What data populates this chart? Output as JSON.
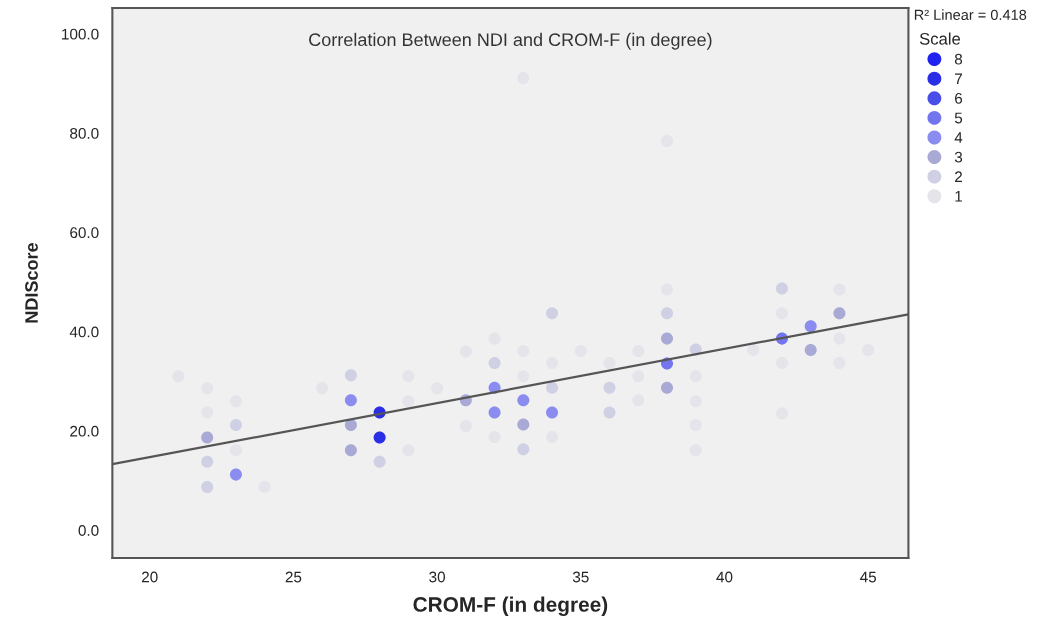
{
  "chart_data": {
    "type": "scatter",
    "title": "Correlation Between NDI and CROM-F (in degree)",
    "xlabel": "CROM-F (in degree)",
    "ylabel": "NDIScore",
    "legend_title": "Scale",
    "annotations": [
      "R² Linear = 0.418"
    ],
    "xlim": [
      18.7,
      46.4
    ],
    "ylim": [
      -5.6,
      105.2
    ],
    "xticks": [
      20,
      25,
      30,
      35,
      40,
      45
    ],
    "yticks": [
      {
        "value": 0,
        "label": "0.0"
      },
      {
        "value": 20,
        "label": "20.0"
      },
      {
        "value": 40,
        "label": "40.0"
      },
      {
        "value": 60,
        "label": "60.0"
      },
      {
        "value": 80,
        "label": "80.0"
      },
      {
        "value": 100,
        "label": "100.0"
      }
    ],
    "marker": "circle",
    "legend": "top right",
    "grid": false,
    "series": [
      {
        "name": "8",
        "color": "#1f22f0"
      },
      {
        "name": "7",
        "color": "#2a2ee6",
        "x": [
          28,
          28
        ],
        "values": [
          23.7,
          18.7
        ]
      },
      {
        "name": "6",
        "color": "#4a4ee8"
      },
      {
        "name": "5",
        "color": "#7375ee",
        "x": [
          38,
          42
        ],
        "values": [
          33.6,
          38.6
        ]
      },
      {
        "name": "4",
        "color": "#8a8cf0",
        "x": [
          23,
          27,
          32,
          32,
          33,
          34,
          43
        ],
        "values": [
          11.2,
          26.2,
          28.7,
          23.7,
          26.2,
          23.7,
          41.1
        ]
      },
      {
        "name": "3",
        "color": "#a9a9d6",
        "x": [
          22,
          27,
          27,
          31,
          33,
          38,
          38,
          43,
          44
        ],
        "values": [
          18.7,
          21.2,
          16.1,
          26.2,
          21.3,
          38.6,
          28.7,
          36.3,
          43.7
        ]
      },
      {
        "name": "2",
        "color": "#cfd0e3",
        "x": [
          22,
          22,
          23,
          27,
          28,
          32,
          33,
          34,
          34,
          36,
          36,
          38,
          39,
          42
        ],
        "values": [
          13.8,
          8.7,
          21.2,
          31.2,
          13.8,
          33.7,
          16.3,
          43.7,
          28.7,
          28.7,
          23.7,
          43.7,
          36.4,
          48.7
        ]
      },
      {
        "name": "1",
        "color": "#e4e4ea",
        "x": [
          22,
          22,
          21,
          23,
          23,
          24,
          26,
          29,
          29,
          29,
          30,
          31,
          31,
          32,
          32,
          33,
          33,
          33,
          34,
          34,
          35,
          36,
          37,
          37,
          37,
          38,
          38,
          39,
          39,
          39,
          39,
          41,
          42,
          42,
          42,
          44,
          44,
          44,
          45
        ],
        "values": [
          28.6,
          23.7,
          31.0,
          26.0,
          16.1,
          8.7,
          28.6,
          31.0,
          26.0,
          16.1,
          28.6,
          36.0,
          21.0,
          38.6,
          18.8,
          36.1,
          31.0,
          91.1,
          33.7,
          18.8,
          36.1,
          33.7,
          36.1,
          31.0,
          26.2,
          48.5,
          78.4,
          31.0,
          26.0,
          21.2,
          16.1,
          36.3,
          43.7,
          33.7,
          23.5,
          48.5,
          38.6,
          33.7,
          36.3
        ]
      },
      {
        "type": "line",
        "marker": "none",
        "color": "#555555",
        "x": [
          18.7,
          46.4
        ],
        "values": [
          13.3,
          43.5
        ]
      }
    ]
  }
}
